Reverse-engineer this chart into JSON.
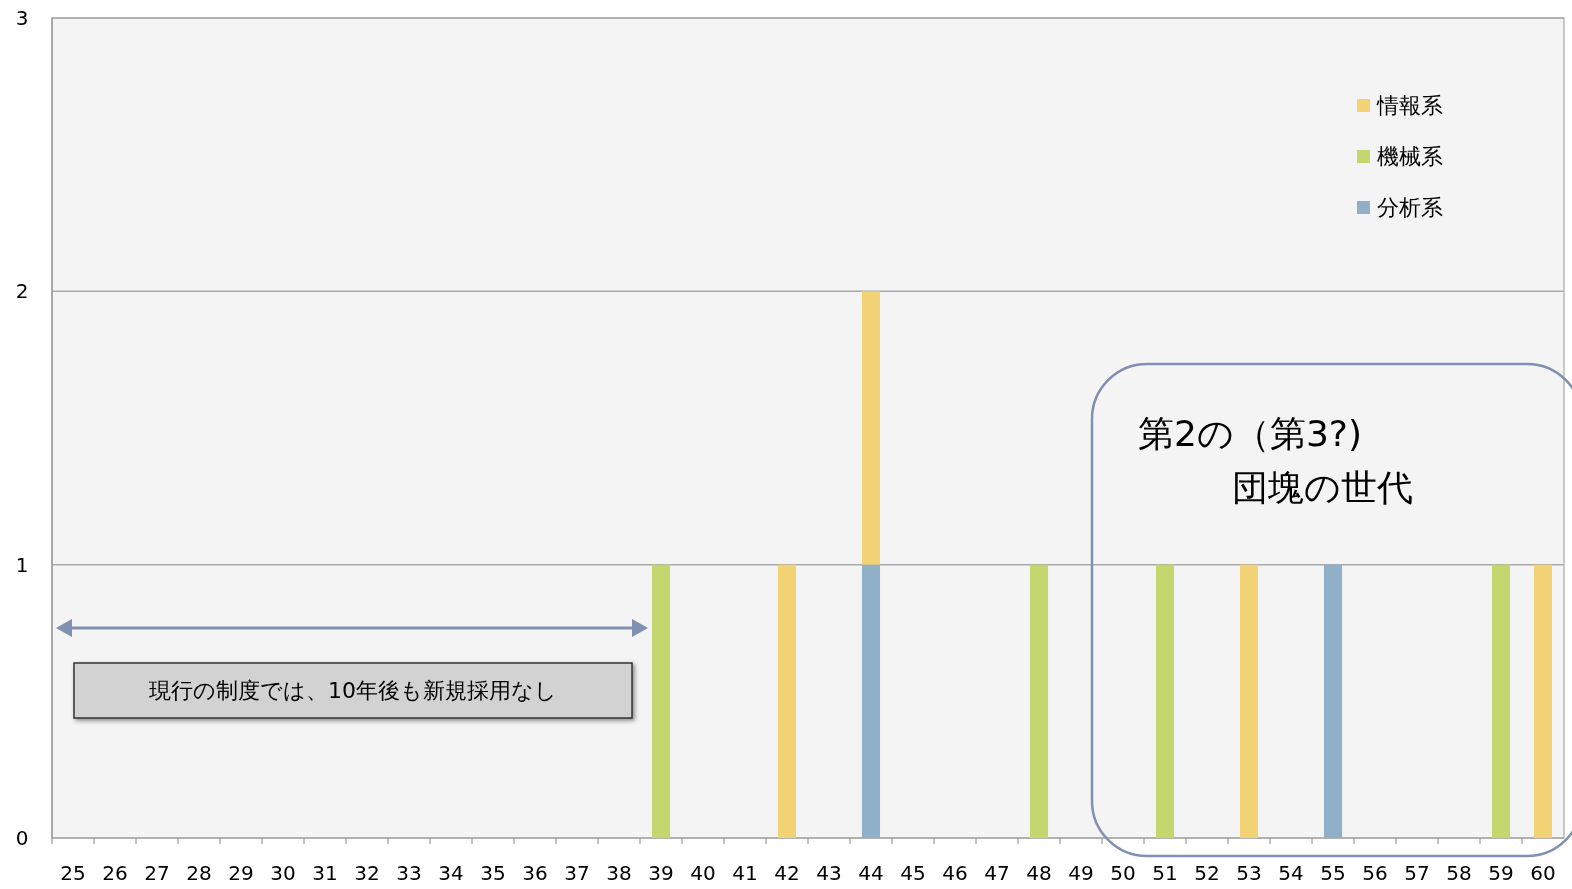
{
  "chart_data": {
    "type": "bar",
    "stacked": true,
    "categories": [
      "25",
      "26",
      "27",
      "28",
      "29",
      "30",
      "31",
      "32",
      "33",
      "34",
      "35",
      "36",
      "37",
      "38",
      "39",
      "40",
      "41",
      "42",
      "43",
      "44",
      "45",
      "46",
      "47",
      "48",
      "49",
      "50",
      "51",
      "52",
      "53",
      "54",
      "55",
      "56",
      "57",
      "58",
      "59",
      "60"
    ],
    "series": [
      {
        "name": "分析系",
        "color": "#8fb0c8",
        "values": [
          0,
          0,
          0,
          0,
          0,
          0,
          0,
          0,
          0,
          0,
          0,
          0,
          0,
          0,
          0,
          0,
          0,
          0,
          0,
          1,
          0,
          0,
          0,
          0,
          0,
          0,
          0,
          0,
          0,
          0,
          1,
          0,
          0,
          0,
          0,
          0
        ]
      },
      {
        "name": "機械系",
        "color": "#c4d66e",
        "values": [
          0,
          0,
          0,
          0,
          0,
          0,
          0,
          0,
          0,
          0,
          0,
          0,
          0,
          0,
          1,
          0,
          0,
          0,
          0,
          0,
          0,
          0,
          0,
          1,
          0,
          0,
          1,
          0,
          0,
          0,
          0,
          0,
          0,
          0,
          1,
          0
        ]
      },
      {
        "name": "情報系",
        "color": "#f3d276",
        "values": [
          0,
          0,
          0,
          0,
          0,
          0,
          0,
          0,
          0,
          0,
          0,
          0,
          0,
          0,
          0,
          0,
          0,
          1,
          0,
          1,
          0,
          0,
          0,
          0,
          0,
          0,
          0,
          0,
          1,
          0,
          0,
          0,
          0,
          0,
          0,
          1
        ]
      }
    ],
    "ylim": [
      0,
      3
    ],
    "yticks": [
      0,
      1,
      2,
      3
    ],
    "grid": "y",
    "legend": "top right",
    "annotations": [
      "現行の制度では、10年後も新規採用なし",
      "第2の（第3?)\n団塊の世代"
    ]
  }
}
